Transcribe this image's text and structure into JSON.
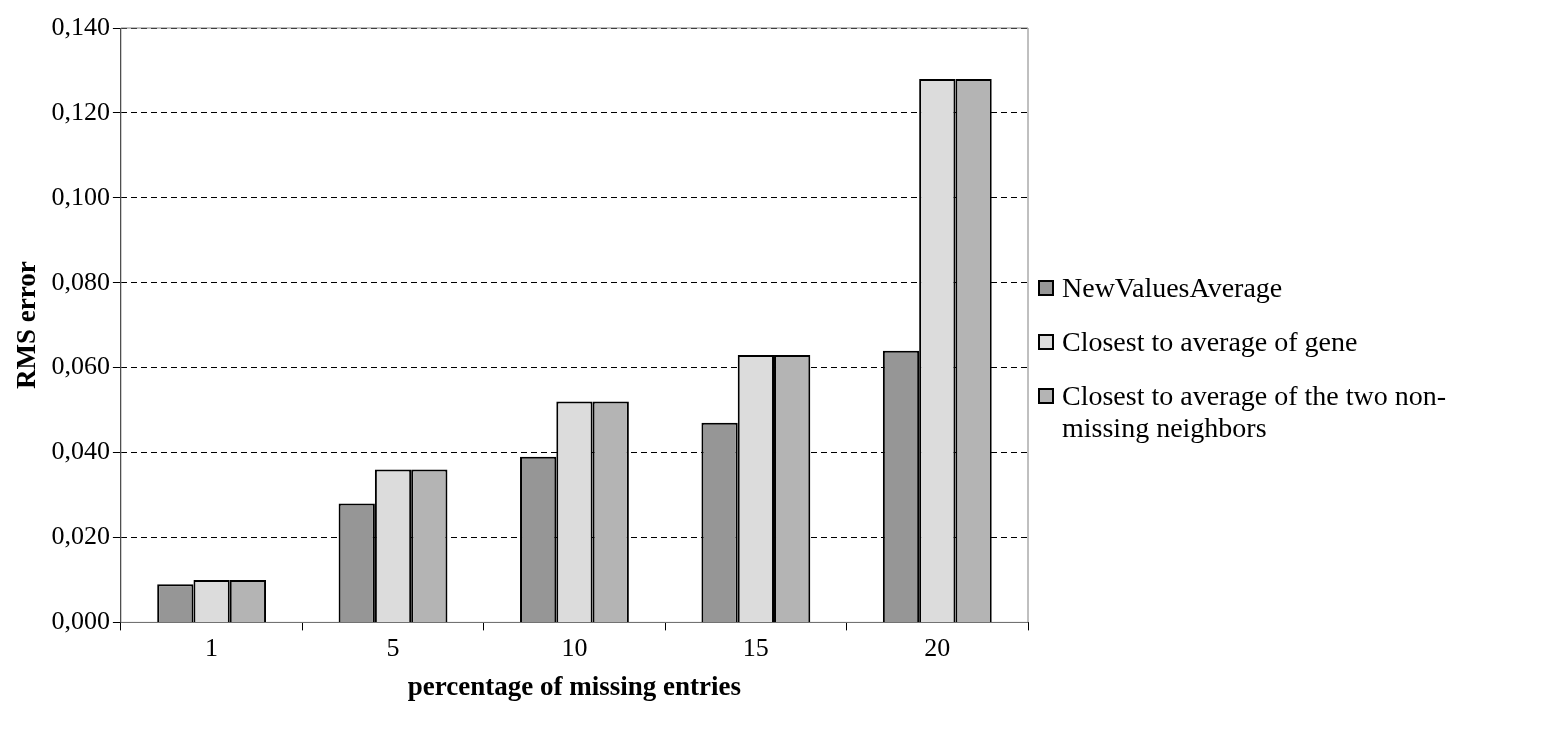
{
  "chart_data": {
    "type": "bar",
    "xlabel": "percentage of missing entries",
    "ylabel": "RMS error",
    "categories": [
      "1",
      "5",
      "10",
      "15",
      "20"
    ],
    "series": [
      {
        "name": "NewValuesAverage",
        "color": "#969696",
        "values": [
          0.009,
          0.028,
          0.039,
          0.047,
          0.064
        ]
      },
      {
        "name": "Closest to average of gene",
        "color": "#dcdcdc",
        "values": [
          0.01,
          0.036,
          0.052,
          0.063,
          0.128
        ]
      },
      {
        "name": "Closest to average of the two non-missing neighbors",
        "color": "#b4b4b4",
        "values": [
          0.01,
          0.036,
          0.052,
          0.063,
          0.128
        ]
      }
    ],
    "ylim": [
      0,
      0.14
    ],
    "yticks": [
      {
        "value": 0,
        "label": "0,000"
      },
      {
        "value": 0.02,
        "label": "0,020"
      },
      {
        "value": 0.04,
        "label": "0,040"
      },
      {
        "value": 0.06,
        "label": "0,060"
      },
      {
        "value": 0.08,
        "label": "0,080"
      },
      {
        "value": 0.1,
        "label": "0,100"
      },
      {
        "value": 0.12,
        "label": "0,120"
      },
      {
        "value": 0.14,
        "label": "0,140"
      }
    ],
    "grid": "y",
    "line_style": "dashed",
    "legend": "right"
  }
}
